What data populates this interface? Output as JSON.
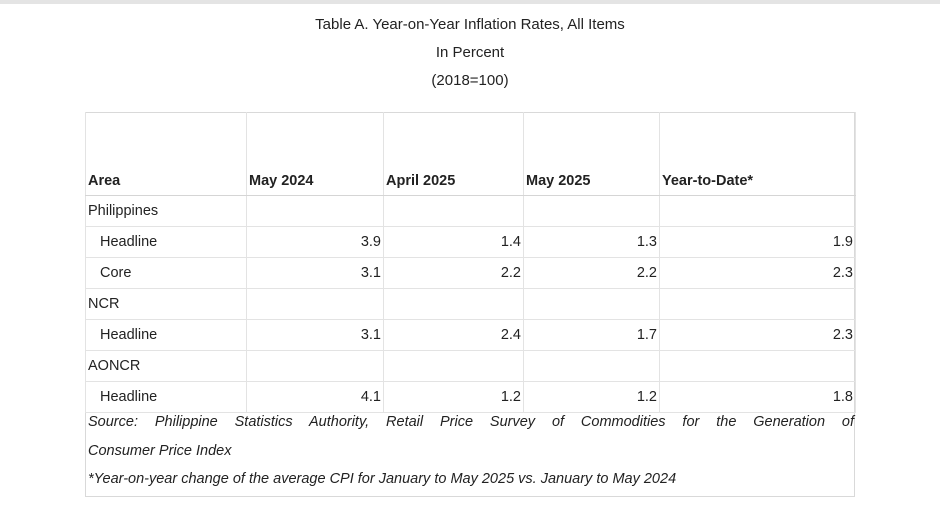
{
  "title": {
    "line1": "Table A. Year-on-Year Inflation Rates, All Items",
    "line2": "In Percent",
    "line3": "(2018=100)"
  },
  "table": {
    "headers": [
      "Area",
      "May 2024",
      "April 2025",
      "May 2025",
      "Year-to-Date*"
    ],
    "rows": [
      {
        "area": "Philippines",
        "indent": false,
        "values": [
          "",
          "",
          "",
          ""
        ]
      },
      {
        "area": "Headline",
        "indent": true,
        "values": [
          "3.9",
          "1.4",
          "1.3",
          "1.9"
        ]
      },
      {
        "area": "Core",
        "indent": true,
        "values": [
          "3.1",
          "2.2",
          "2.2",
          "2.3"
        ]
      },
      {
        "area": "NCR",
        "indent": false,
        "values": [
          "",
          "",
          "",
          ""
        ]
      },
      {
        "area": "Headline",
        "indent": true,
        "values": [
          "3.1",
          "2.4",
          "1.7",
          "2.3"
        ]
      },
      {
        "area": "AONCR",
        "indent": false,
        "values": [
          "",
          "",
          "",
          ""
        ]
      },
      {
        "area": "Headline",
        "indent": true,
        "values": [
          "4.1",
          "1.2",
          "1.2",
          "1.8"
        ]
      }
    ]
  },
  "notes": {
    "source_line1": "Source: Philippine Statistics Authority, Retail Price Survey of Commodities for the Generation of",
    "source_line2": "Consumer Price Index",
    "footnote": "*Year-on-year change of the average CPI for January to May 2025 vs. January to May 2024"
  }
}
